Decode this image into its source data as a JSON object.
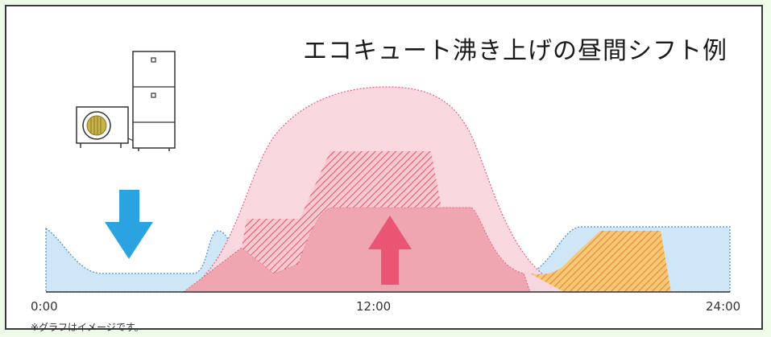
{
  "title": "エコキュート沸き上げの昼間シフト例",
  "x_axis": {
    "tick_start": "0:00",
    "tick_mid": "12:00",
    "tick_end": "24:00"
  },
  "footnote": "※グラフはイメージです。",
  "colors": {
    "frame_border": "#3a3a3a",
    "page_background": "#eefbe6",
    "demand_area": "#cfe6f6",
    "demand_outline": "#4a8fd0",
    "solar_area": "#f8d6dc",
    "solar_outline": "#e06479",
    "shifted_area": "#f0a6b1",
    "evening_area": "#f5c36b",
    "down_arrow": "#2aa3e0",
    "up_arrow": "#ea5573"
  },
  "icons": [
    "heat-pump-unit-icon",
    "storage-tank-icon",
    "down-arrow-icon",
    "up-arrow-icon"
  ]
}
